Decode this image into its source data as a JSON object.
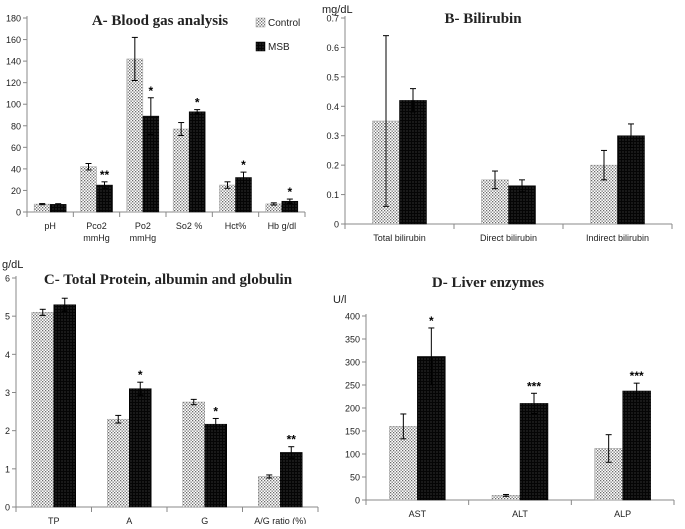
{
  "colors": {
    "control": "#d6d6d6",
    "msb": "#111111",
    "axis": "#888888",
    "text": "#222222"
  },
  "legend": {
    "control": "Control",
    "msb": "MSB"
  },
  "chart_data": [
    {
      "id": "A",
      "type": "bar",
      "title": "A- Blood gas analysis",
      "ylabel": "",
      "ylim": [
        0,
        180
      ],
      "yticks": [
        0,
        20,
        40,
        60,
        80,
        100,
        120,
        140,
        160,
        180
      ],
      "categories": [
        [
          "pH"
        ],
        [
          "Pco2",
          "mmHg"
        ],
        [
          "Po2",
          "mmHg"
        ],
        [
          "So2 %"
        ],
        [
          "Hct%"
        ],
        [
          "Hb g/dl"
        ]
      ],
      "series": [
        {
          "name": "Control",
          "values": [
            7.3,
            42,
            142,
            77,
            25,
            7.5
          ],
          "errors": [
            0.5,
            3,
            20,
            6,
            3,
            1
          ]
        },
        {
          "name": "MSB",
          "values": [
            7.1,
            25,
            89,
            93,
            32,
            10
          ],
          "errors": [
            0.6,
            3,
            17,
            2,
            5,
            2
          ]
        }
      ],
      "annotations": [
        "",
        "**",
        "*",
        "*",
        "*",
        "*"
      ]
    },
    {
      "id": "B",
      "type": "bar",
      "title": "B- Bilirubin",
      "ylabel": "mg/dL",
      "ylim": [
        0,
        0.7
      ],
      "yticks": [
        0,
        0.1,
        0.2,
        0.3,
        0.4,
        0.5,
        0.6,
        0.7
      ],
      "categories": [
        [
          "Total bilirubin"
        ],
        [
          "Direct bilirubin"
        ],
        [
          "Indirect bilirubin"
        ]
      ],
      "series": [
        {
          "name": "Control",
          "values": [
            0.35,
            0.15,
            0.2
          ],
          "errors": [
            0.29,
            0.03,
            0.05
          ]
        },
        {
          "name": "MSB",
          "values": [
            0.42,
            0.13,
            0.3
          ],
          "errors": [
            0.04,
            0.02,
            0.04
          ]
        }
      ],
      "annotations": [
        "",
        "",
        ""
      ]
    },
    {
      "id": "C",
      "type": "bar",
      "title": "C- Total Protein, albumin and globulin",
      "ylabel": "g/dL",
      "ylim": [
        0,
        6
      ],
      "yticks": [
        0,
        1,
        2,
        3,
        4,
        5,
        6
      ],
      "categories": [
        [
          "TP"
        ],
        [
          "A"
        ],
        [
          "G"
        ],
        [
          "A/G ratio (%)"
        ]
      ],
      "series": [
        {
          "name": "Control",
          "values": [
            5.1,
            2.3,
            2.75,
            0.8
          ],
          "errors": [
            0.08,
            0.1,
            0.07,
            0.04
          ]
        },
        {
          "name": "MSB",
          "values": [
            5.3,
            3.1,
            2.17,
            1.43
          ],
          "errors": [
            0.17,
            0.17,
            0.15,
            0.15
          ]
        }
      ],
      "annotations": [
        "",
        "*",
        "*",
        "**"
      ]
    },
    {
      "id": "D",
      "type": "bar",
      "title": "D- Liver enzymes",
      "ylabel": "U/l",
      "ylim": [
        0,
        400
      ],
      "yticks": [
        0,
        50,
        100,
        150,
        200,
        250,
        300,
        350,
        400
      ],
      "categories": [
        [
          "AST"
        ],
        [
          "ALT"
        ],
        [
          "ALP"
        ]
      ],
      "series": [
        {
          "name": "Control",
          "values": [
            160,
            10,
            112
          ],
          "errors": [
            27,
            2,
            30
          ]
        },
        {
          "name": "MSB",
          "values": [
            312,
            210,
            237
          ],
          "errors": [
            62,
            22,
            17
          ]
        }
      ],
      "annotations": [
        "*",
        "***",
        "***"
      ]
    }
  ]
}
